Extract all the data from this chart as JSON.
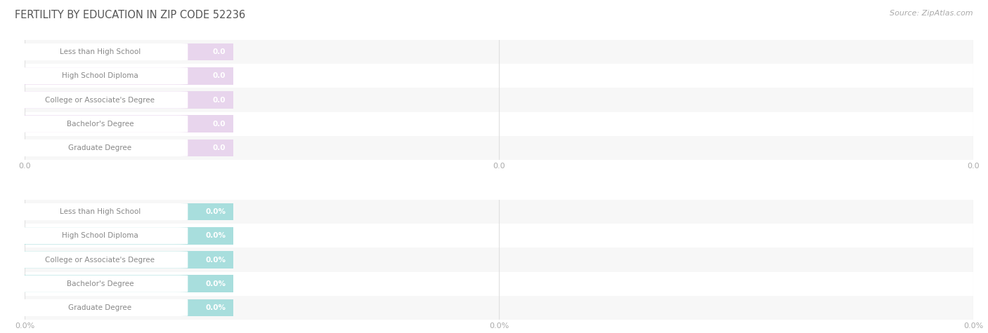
{
  "title": "Fertility by Education in Zip Code 52236",
  "title_upper": "FERTILITY BY EDUCATION IN ZIP CODE 52236",
  "source": "Source: ZipAtlas.com",
  "categories": [
    "Less than High School",
    "High School Diploma",
    "College or Associate's Degree",
    "Bachelor's Degree",
    "Graduate Degree"
  ],
  "values_top": [
    0.0,
    0.0,
    0.0,
    0.0,
    0.0
  ],
  "values_bottom": [
    0.0,
    0.0,
    0.0,
    0.0,
    0.0
  ],
  "bar_color_top": "#c9a8d4",
  "bar_bg_color_top": "#e8d5ed",
  "bar_color_bottom": "#5bbfba",
  "bar_bg_color_bottom": "#a8dedd",
  "label_bg_color": "#ffffff",
  "title_color": "#555555",
  "source_color": "#aaaaaa",
  "category_label_color": "#888888",
  "value_text_color": "#cccccc",
  "tick_label_color": "#aaaaaa",
  "grid_color": "#e0e0e0",
  "row_bg": [
    "#f7f7f7",
    "#ffffff"
  ],
  "fig_bg": "#ffffff",
  "xtick_labels_top": [
    "0.0",
    "0.0",
    "0.0"
  ],
  "xtick_labels_bottom": [
    "0.0%",
    "0.0%",
    "0.0%"
  ]
}
